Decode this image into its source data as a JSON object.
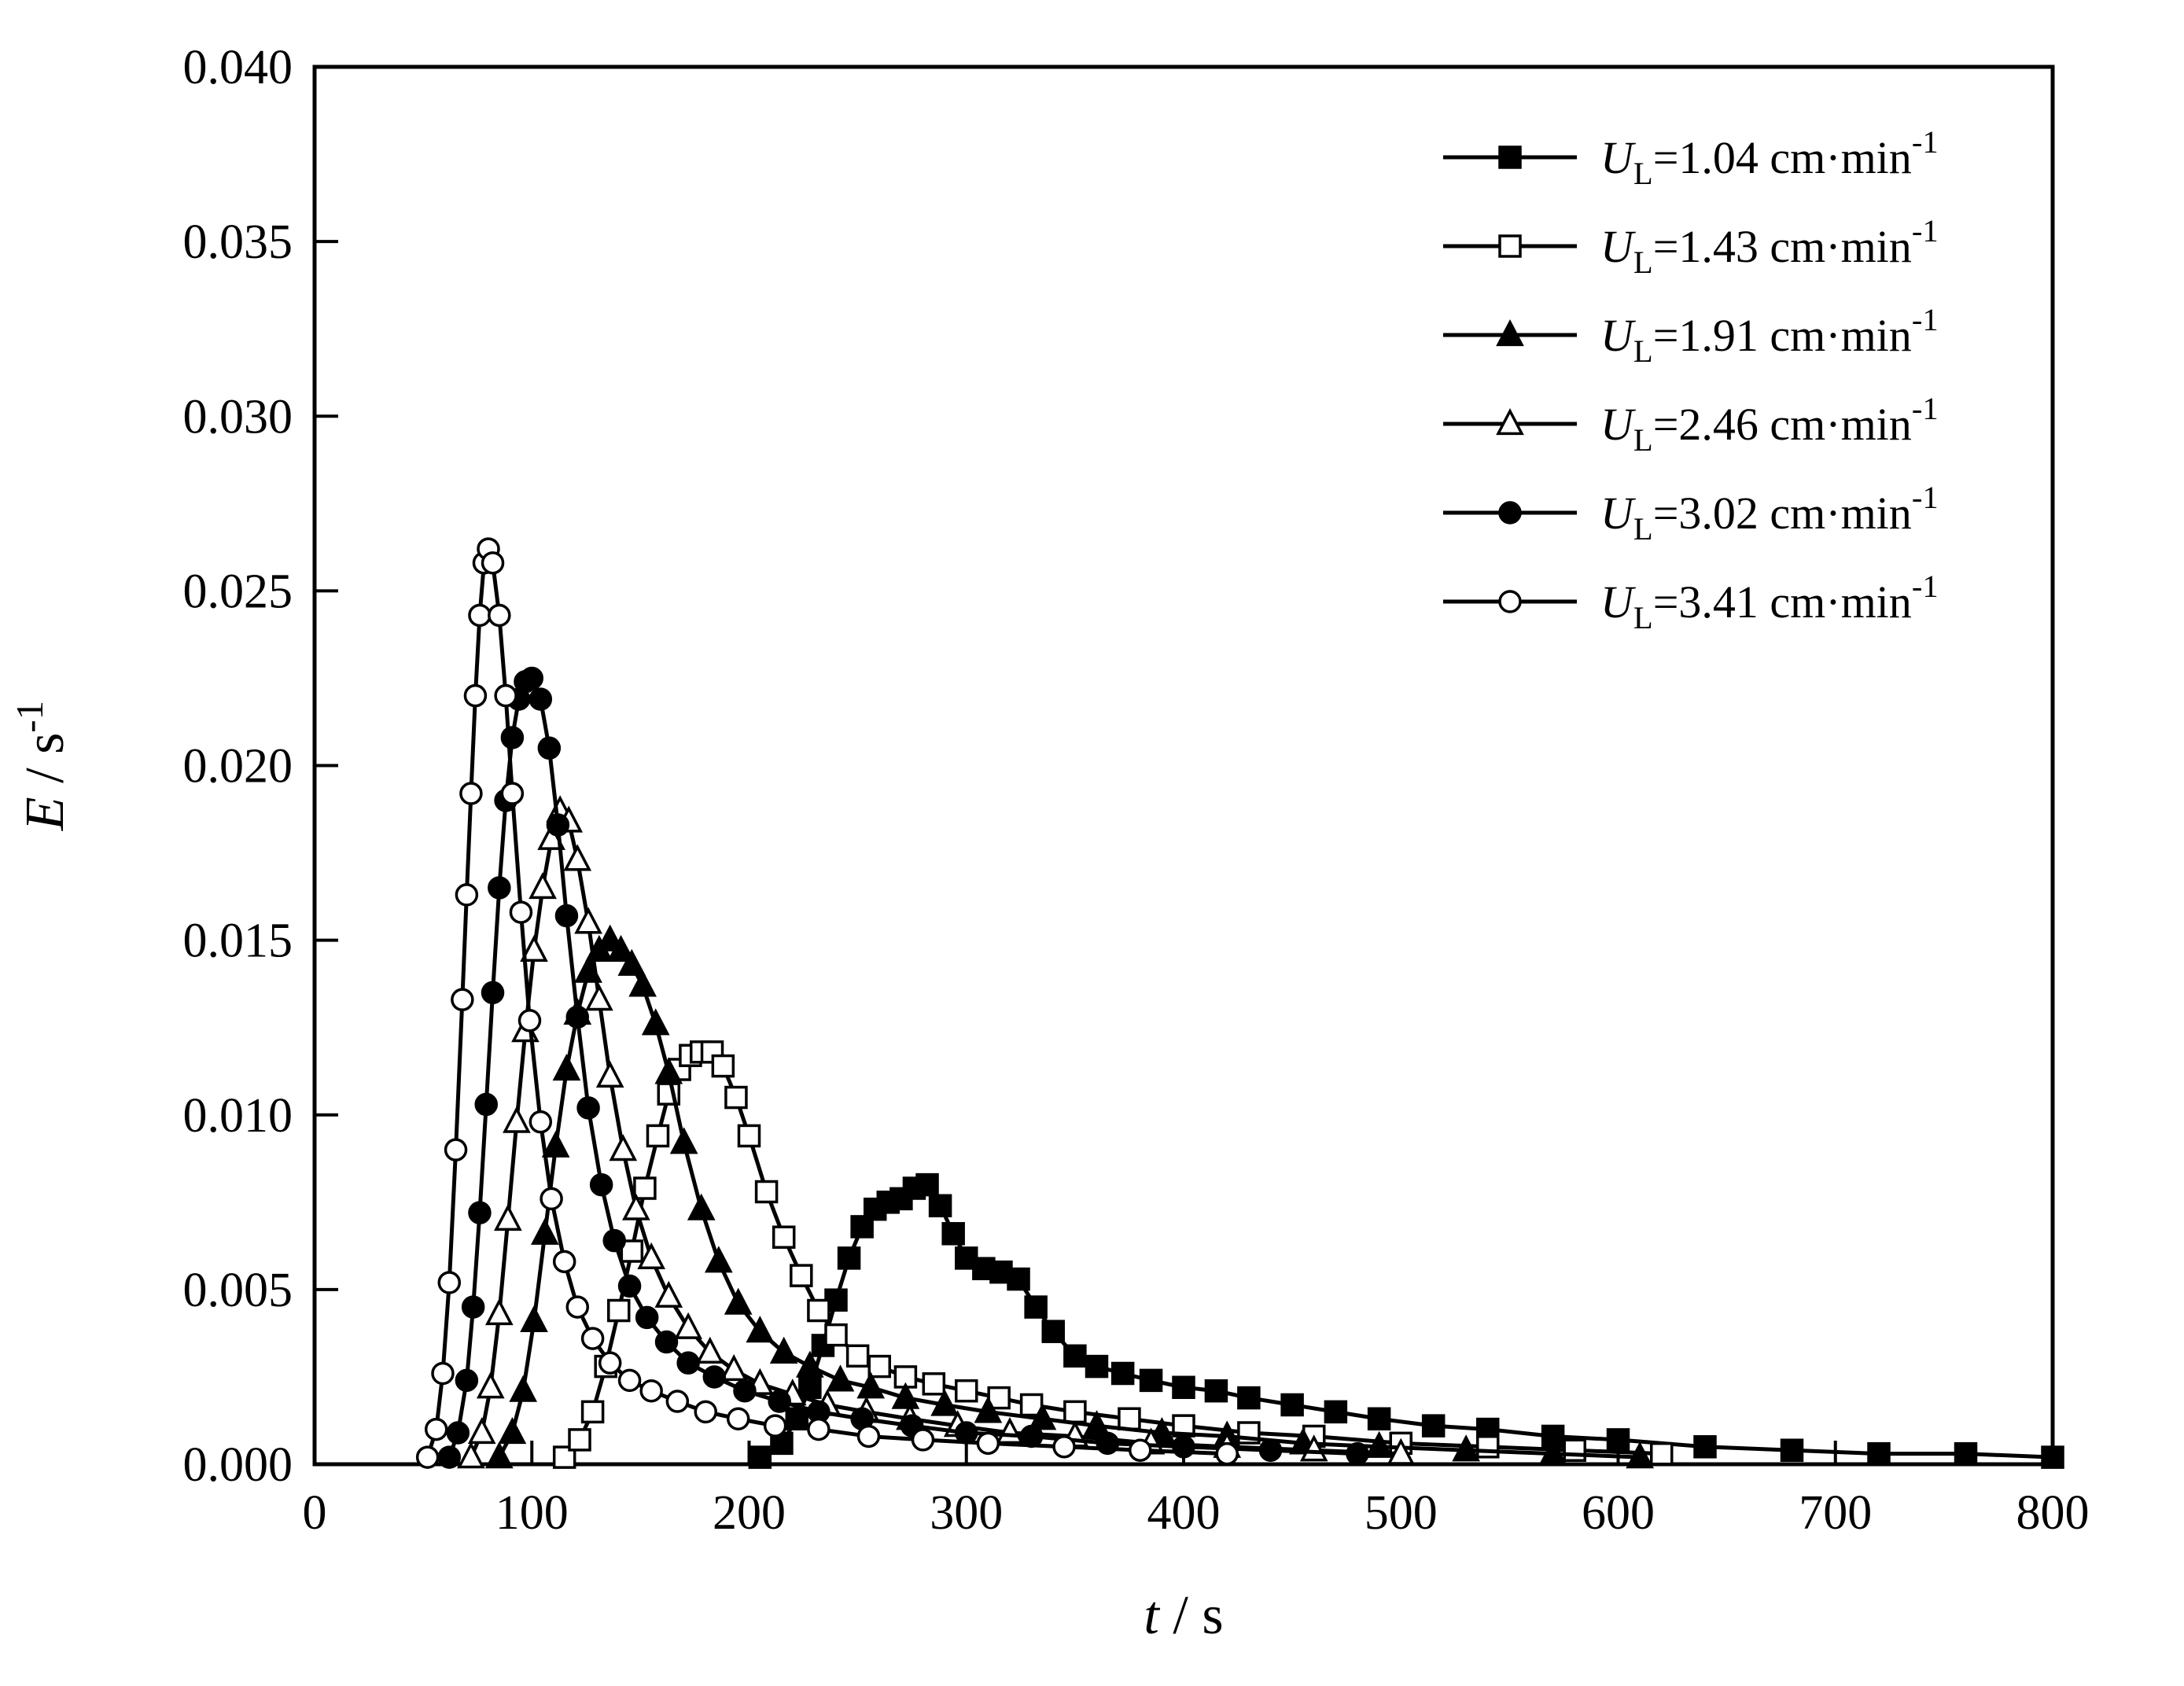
{
  "figure": {
    "background": "#ffffff",
    "line_color": "#000000"
  },
  "chart_data": {
    "type": "line",
    "title": "",
    "xlabel_parts": {
      "var": "t",
      "rest": " / s"
    },
    "ylabel_parts": {
      "var": "E",
      "rest": " / s",
      "sup": "-1"
    },
    "xlim": [
      0,
      800
    ],
    "ylim": [
      0.0,
      0.04
    ],
    "x_ticks": [
      0,
      100,
      200,
      300,
      400,
      500,
      600,
      700,
      800
    ],
    "y_ticks": [
      0.0,
      0.005,
      0.01,
      0.015,
      0.02,
      0.025,
      0.03,
      0.035,
      0.04
    ],
    "y_tick_labels": [
      "0.000",
      "0.005",
      "0.010",
      "0.015",
      "0.020",
      "0.025",
      "0.030",
      "0.035",
      "0.040"
    ],
    "grid": false,
    "legend_position": "top-right",
    "series": [
      {
        "label": "UL=1.04 cm·min-1",
        "label_parts": {
          "var": "U",
          "sub": "L",
          "equals": "=",
          "value": "1.04",
          "unit": " cm·min",
          "sup": "-1"
        },
        "marker": "square-filled",
        "x": [
          205,
          215,
          222,
          228,
          234,
          240,
          246,
          252,
          258,
          264,
          270,
          276,
          282,
          288,
          294,
          300,
          308,
          316,
          324,
          332,
          340,
          350,
          360,
          372,
          385,
          400,
          415,
          430,
          450,
          470,
          490,
          515,
          540,
          570,
          600,
          640,
          680,
          720,
          760,
          800
        ],
        "y": [
          0.0002,
          0.0006,
          0.0013,
          0.0022,
          0.0034,
          0.0047,
          0.0059,
          0.0068,
          0.0073,
          0.0075,
          0.0076,
          0.0079,
          0.008,
          0.0074,
          0.0066,
          0.0059,
          0.0056,
          0.0055,
          0.0053,
          0.0045,
          0.0038,
          0.0031,
          0.0028,
          0.0026,
          0.0024,
          0.0022,
          0.0021,
          0.0019,
          0.0017,
          0.0015,
          0.0013,
          0.0011,
          0.001,
          0.0008,
          0.0007,
          0.0005,
          0.0004,
          0.0003,
          0.0003,
          0.0002
        ]
      },
      {
        "label": "UL=1.43 cm·min-1",
        "label_parts": {
          "var": "U",
          "sub": "L",
          "equals": "=",
          "value": "1.43",
          "unit": " cm·min",
          "sup": "-1"
        },
        "marker": "square-open",
        "x": [
          115,
          122,
          128,
          134,
          140,
          146,
          152,
          158,
          163,
          168,
          173,
          178,
          183,
          188,
          194,
          200,
          208,
          216,
          224,
          232,
          240,
          250,
          260,
          272,
          285,
          300,
          315,
          330,
          350,
          375,
          400,
          430,
          460,
          500,
          540,
          580,
          620
        ],
        "y": [
          0.0002,
          0.0007,
          0.0015,
          0.0028,
          0.0044,
          0.0061,
          0.0079,
          0.0094,
          0.0106,
          0.0113,
          0.0117,
          0.0118,
          0.0118,
          0.0114,
          0.0105,
          0.0094,
          0.0078,
          0.0065,
          0.0054,
          0.0044,
          0.0037,
          0.0031,
          0.0028,
          0.0025,
          0.0023,
          0.0021,
          0.0019,
          0.0017,
          0.0015,
          0.0013,
          0.0011,
          0.0009,
          0.0008,
          0.0006,
          0.0005,
          0.0004,
          0.0003
        ]
      },
      {
        "label": "UL=1.91 cm·min-1",
        "label_parts": {
          "var": "U",
          "sub": "L",
          "equals": "=",
          "value": "1.91",
          "unit": " cm·min",
          "sup": "-1"
        },
        "marker": "triangle-filled",
        "x": [
          85,
          91,
          96,
          101,
          106,
          111,
          116,
          121,
          126,
          131,
          136,
          141,
          146,
          151,
          157,
          163,
          170,
          178,
          186,
          195,
          205,
          216,
          228,
          242,
          256,
          272,
          290,
          310,
          335,
          360,
          390,
          420,
          455,
          490,
          530,
          570,
          610
        ],
        "y": [
          0.0002,
          0.0009,
          0.0021,
          0.0041,
          0.0066,
          0.0091,
          0.0113,
          0.0129,
          0.0141,
          0.0147,
          0.015,
          0.0147,
          0.0143,
          0.0137,
          0.0126,
          0.0112,
          0.0092,
          0.0073,
          0.0058,
          0.0046,
          0.0038,
          0.0032,
          0.0028,
          0.0024,
          0.0022,
          0.0019,
          0.0017,
          0.0015,
          0.0013,
          0.0011,
          0.0009,
          0.0008,
          0.0006,
          0.0005,
          0.0004,
          0.0003,
          0.0002
        ]
      },
      {
        "label": "UL=2.46 cm·min-1",
        "label_parts": {
          "var": "U",
          "sub": "L",
          "equals": "=",
          "value": "2.46",
          "unit": " cm·min",
          "sup": "-1"
        },
        "marker": "triangle-open",
        "x": [
          72,
          77,
          81,
          85,
          89,
          93,
          97,
          101,
          105,
          109,
          113,
          117,
          121,
          126,
          131,
          136,
          142,
          148,
          155,
          163,
          172,
          182,
          193,
          205,
          220,
          236,
          254,
          274,
          296,
          320,
          350,
          385,
          420,
          460,
          500
        ],
        "y": [
          0.0002,
          0.0009,
          0.0022,
          0.0043,
          0.007,
          0.0098,
          0.0124,
          0.0147,
          0.0165,
          0.0179,
          0.0187,
          0.0184,
          0.0173,
          0.0155,
          0.0133,
          0.0111,
          0.009,
          0.0073,
          0.0059,
          0.0048,
          0.0039,
          0.0032,
          0.0027,
          0.0023,
          0.002,
          0.0017,
          0.0015,
          0.0013,
          0.0011,
          0.0009,
          0.0008,
          0.0006,
          0.0005,
          0.0004,
          0.0003
        ]
      },
      {
        "label": "UL=3.02 cm·min-1",
        "label_parts": {
          "var": "U",
          "sub": "L",
          "equals": "=",
          "value": "3.02",
          "unit": " cm·min",
          "sup": "-1"
        },
        "marker": "circle-filled",
        "x": [
          62,
          66,
          70,
          73,
          76,
          79,
          82,
          85,
          88,
          91,
          94,
          97,
          100,
          104,
          108,
          112,
          116,
          121,
          126,
          132,
          138,
          145,
          153,
          162,
          172,
          184,
          198,
          214,
          232,
          252,
          275,
          300,
          330,
          365,
          400,
          440,
          480
        ],
        "y": [
          0.0002,
          0.0009,
          0.0024,
          0.0045,
          0.0072,
          0.0103,
          0.0135,
          0.0165,
          0.019,
          0.0208,
          0.0219,
          0.0224,
          0.0225,
          0.0219,
          0.0205,
          0.0183,
          0.0157,
          0.0128,
          0.0102,
          0.008,
          0.0064,
          0.0051,
          0.0042,
          0.0035,
          0.0029,
          0.0025,
          0.0021,
          0.0018,
          0.0015,
          0.0013,
          0.0011,
          0.0009,
          0.0008,
          0.0006,
          0.0005,
          0.0004,
          0.0003
        ]
      },
      {
        "label": "UL=3.41 cm·min-1",
        "label_parts": {
          "var": "U",
          "sub": "L",
          "equals": "=",
          "value": "3.41",
          "unit": " cm·min",
          "sup": "-1"
        },
        "marker": "circle-open",
        "x": [
          52,
          56,
          59,
          62,
          65,
          68,
          70,
          72,
          74,
          76,
          78,
          80,
          82,
          85,
          88,
          91,
          95,
          99,
          104,
          109,
          115,
          121,
          128,
          136,
          145,
          155,
          167,
          180,
          195,
          212,
          232,
          255,
          280,
          310,
          345,
          380,
          420
        ],
        "y": [
          0.0002,
          0.001,
          0.0026,
          0.0052,
          0.009,
          0.0133,
          0.0163,
          0.0192,
          0.022,
          0.0243,
          0.0258,
          0.0262,
          0.0258,
          0.0243,
          0.022,
          0.0192,
          0.0158,
          0.0127,
          0.0098,
          0.0076,
          0.0058,
          0.0045,
          0.0036,
          0.0029,
          0.0024,
          0.0021,
          0.0018,
          0.0015,
          0.0013,
          0.0011,
          0.001,
          0.0008,
          0.0007,
          0.0006,
          0.0005,
          0.0004,
          0.0003
        ]
      }
    ]
  }
}
